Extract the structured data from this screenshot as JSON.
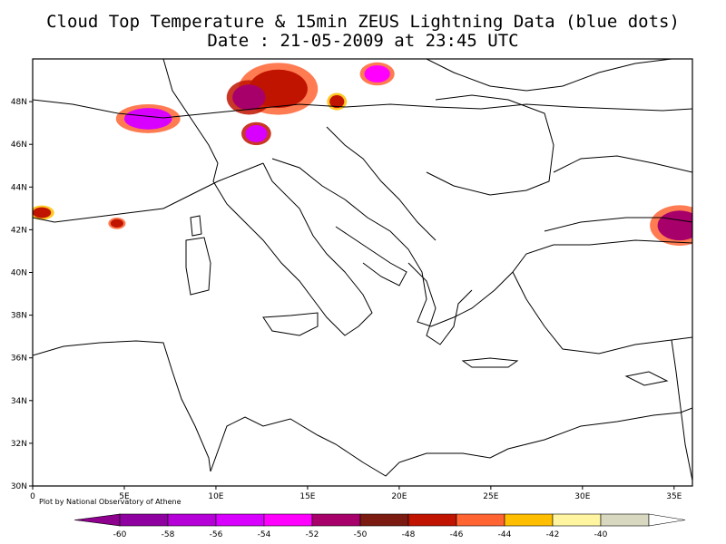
{
  "title": {
    "line1": "Cloud Top Temperature & 15min ZEUS Lightning Data (blue dots)",
    "line2": "Date : 21-05-2009 at 23:45 UTC"
  },
  "credit": "Plot by National Observatory of Athene",
  "map": {
    "lon_range": [
      0,
      36
    ],
    "lat_range": [
      30,
      50
    ],
    "lon_ticks": [
      "0",
      "5E",
      "10E",
      "15E",
      "20E",
      "25E",
      "30E",
      "35E"
    ],
    "lat_ticks": [
      "30N",
      "32N",
      "34N",
      "36N",
      "38N",
      "40N",
      "42N",
      "44N",
      "46N",
      "48N"
    ],
    "coast_color": "#000000"
  },
  "colorbar": {
    "labels": [
      "-60",
      "-58",
      "-56",
      "-54",
      "-52",
      "-50",
      "-48",
      "-46",
      "-44",
      "-42",
      "-40"
    ],
    "colors": [
      "#8e00a0",
      "#b600d8",
      "#d800ff",
      "#ff00ff",
      "#a8006a",
      "#7a1a10",
      "#c01400",
      "#ff6432",
      "#ffbe00",
      "#fff5a0",
      "#d8d8c0"
    ],
    "below_color": "#8e008e",
    "above_color": "#ffffff"
  },
  "cloud_clusters": [
    {
      "name": "central-alps-cluster",
      "lon": 13.4,
      "lat": 48.6,
      "rx": 1.6,
      "ry": 0.9,
      "core": "#c01400",
      "edge": "#ff6432"
    },
    {
      "name": "munich-cluster",
      "lon": 11.8,
      "lat": 48.2,
      "rx": 0.9,
      "ry": 0.6,
      "core": "#a8006a",
      "edge": "#c01400"
    },
    {
      "name": "swiss-alps-cluster",
      "lon": 6.3,
      "lat": 47.2,
      "rx": 1.3,
      "ry": 0.5,
      "core": "#d800ff",
      "edge": "#ff6432"
    },
    {
      "name": "tirol-cluster",
      "lon": 12.2,
      "lat": 46.5,
      "rx": 0.6,
      "ry": 0.4,
      "core": "#d800ff",
      "edge": "#c01400"
    },
    {
      "name": "bohemia-cluster",
      "lon": 18.8,
      "lat": 49.3,
      "rx": 0.7,
      "ry": 0.4,
      "core": "#ff00ff",
      "edge": "#ff6432"
    },
    {
      "name": "hungary-cluster",
      "lon": 16.6,
      "lat": 48.0,
      "rx": 0.4,
      "ry": 0.3,
      "core": "#c01400",
      "edge": "#ffbe00"
    },
    {
      "name": "pyrenees-cluster",
      "lon": 0.5,
      "lat": 42.8,
      "rx": 0.5,
      "ry": 0.25,
      "core": "#c01400",
      "edge": "#ffbe00"
    },
    {
      "name": "lyon-cluster",
      "lon": 4.6,
      "lat": 42.3,
      "rx": 0.35,
      "ry": 0.2,
      "core": "#c01400",
      "edge": "#ff6432"
    },
    {
      "name": "caucasus-cluster",
      "lon": 35.3,
      "lat": 42.2,
      "rx": 1.2,
      "ry": 0.7,
      "core": "#a8006a",
      "edge": "#ff6432"
    }
  ]
}
